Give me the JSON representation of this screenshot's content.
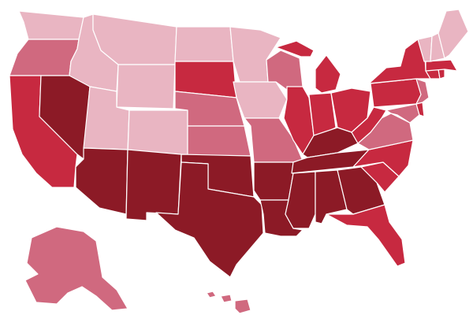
{
  "map": {
    "type": "choropleth",
    "region": "United States",
    "legend": "none",
    "palette": {
      "lightest": "#e9b5c2",
      "light": "#d0697f",
      "medium": "#c72940",
      "dark": "#8c1a26"
    },
    "states": [
      {
        "id": "WA",
        "tier": "lightest"
      },
      {
        "id": "OR",
        "tier": "light"
      },
      {
        "id": "CA",
        "tier": "medium"
      },
      {
        "id": "NV",
        "tier": "dark"
      },
      {
        "id": "ID",
        "tier": "lightest"
      },
      {
        "id": "MT",
        "tier": "lightest"
      },
      {
        "id": "WY",
        "tier": "lightest"
      },
      {
        "id": "UT",
        "tier": "lightest"
      },
      {
        "id": "CO",
        "tier": "lightest"
      },
      {
        "id": "AZ",
        "tier": "dark"
      },
      {
        "id": "NM",
        "tier": "dark"
      },
      {
        "id": "ND",
        "tier": "lightest"
      },
      {
        "id": "SD",
        "tier": "medium"
      },
      {
        "id": "NE",
        "tier": "light"
      },
      {
        "id": "KS",
        "tier": "light"
      },
      {
        "id": "OK",
        "tier": "dark"
      },
      {
        "id": "TX",
        "tier": "dark"
      },
      {
        "id": "MN",
        "tier": "lightest"
      },
      {
        "id": "IA",
        "tier": "lightest"
      },
      {
        "id": "MO",
        "tier": "light"
      },
      {
        "id": "AR",
        "tier": "dark"
      },
      {
        "id": "LA",
        "tier": "dark"
      },
      {
        "id": "WI",
        "tier": "light"
      },
      {
        "id": "IL",
        "tier": "medium"
      },
      {
        "id": "MI",
        "tier": "medium"
      },
      {
        "id": "IN",
        "tier": "medium"
      },
      {
        "id": "OH",
        "tier": "medium"
      },
      {
        "id": "KY",
        "tier": "dark"
      },
      {
        "id": "TN",
        "tier": "dark"
      },
      {
        "id": "MS",
        "tier": "dark"
      },
      {
        "id": "AL",
        "tier": "dark"
      },
      {
        "id": "GA",
        "tier": "dark"
      },
      {
        "id": "FL",
        "tier": "medium"
      },
      {
        "id": "SC",
        "tier": "medium"
      },
      {
        "id": "NC",
        "tier": "medium"
      },
      {
        "id": "VA",
        "tier": "light"
      },
      {
        "id": "WV",
        "tier": "medium"
      },
      {
        "id": "PA",
        "tier": "medium"
      },
      {
        "id": "NY",
        "tier": "medium"
      },
      {
        "id": "MD",
        "tier": "light"
      },
      {
        "id": "DE",
        "tier": "medium"
      },
      {
        "id": "NJ",
        "tier": "light"
      },
      {
        "id": "CT",
        "tier": "medium"
      },
      {
        "id": "RI",
        "tier": "medium"
      },
      {
        "id": "MA",
        "tier": "medium"
      },
      {
        "id": "VT",
        "tier": "lightest"
      },
      {
        "id": "NH",
        "tier": "lightest"
      },
      {
        "id": "ME",
        "tier": "lightest"
      },
      {
        "id": "AK",
        "tier": "light"
      },
      {
        "id": "HI",
        "tier": "light"
      }
    ]
  }
}
